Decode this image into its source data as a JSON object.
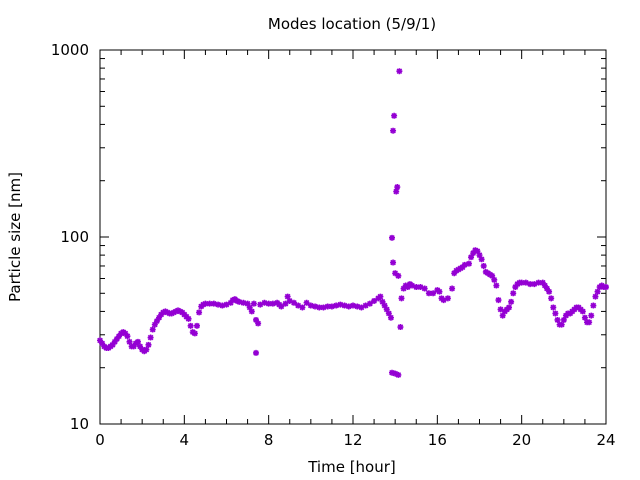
{
  "chart_data": {
    "type": "scatter",
    "title": "Modes location (5/9/1)",
    "xlabel": "Time [hour]",
    "ylabel": "Particle size [nm]",
    "xlim": [
      0,
      24
    ],
    "ylim": [
      10,
      1000
    ],
    "yscale": "log",
    "xticks": [
      0,
      4,
      8,
      12,
      16,
      20,
      24
    ],
    "xtick_labels": [
      "0",
      "4",
      "8",
      "12",
      "16",
      "20",
      "24"
    ],
    "yticks": [
      10,
      100,
      1000
    ],
    "ytick_labels": [
      "10",
      "100",
      "1000"
    ],
    "grid": false,
    "legend": "none",
    "marker_color": "#9400D3",
    "series": [
      {
        "points": [
          [
            0.0,
            28
          ],
          [
            0.1,
            27
          ],
          [
            0.2,
            26
          ],
          [
            0.3,
            25.5
          ],
          [
            0.4,
            25.5
          ],
          [
            0.5,
            26
          ],
          [
            0.6,
            26.5
          ],
          [
            0.7,
            27.5
          ],
          [
            0.8,
            28.5
          ],
          [
            0.9,
            29.5
          ],
          [
            1.0,
            30.5
          ],
          [
            1.1,
            31
          ],
          [
            1.2,
            30.5
          ],
          [
            1.3,
            29.5
          ],
          [
            1.4,
            27.5
          ],
          [
            1.5,
            26
          ],
          [
            1.6,
            26
          ],
          [
            1.7,
            27
          ],
          [
            1.8,
            27.5
          ],
          [
            1.9,
            26
          ],
          [
            2.0,
            25
          ],
          [
            2.1,
            24.5
          ],
          [
            2.2,
            25
          ],
          [
            2.3,
            26.5
          ],
          [
            2.4,
            29
          ],
          [
            2.5,
            32
          ],
          [
            2.6,
            34
          ],
          [
            2.7,
            35.5
          ],
          [
            2.8,
            37
          ],
          [
            2.9,
            38.5
          ],
          [
            3.0,
            39.5
          ],
          [
            3.1,
            40
          ],
          [
            3.2,
            39.5
          ],
          [
            3.3,
            39
          ],
          [
            3.4,
            39
          ],
          [
            3.5,
            39.5
          ],
          [
            3.6,
            40
          ],
          [
            3.7,
            40.5
          ],
          [
            3.8,
            40
          ],
          [
            3.9,
            39.5
          ],
          [
            4.0,
            38.5
          ],
          [
            4.1,
            37.5
          ],
          [
            4.2,
            36.5
          ],
          [
            4.3,
            33.5
          ],
          [
            4.4,
            31
          ],
          [
            4.5,
            30.5
          ],
          [
            4.6,
            33.5
          ],
          [
            4.7,
            39.5
          ],
          [
            4.8,
            42.5
          ],
          [
            4.9,
            43.5
          ],
          [
            5.0,
            44
          ],
          [
            5.2,
            44
          ],
          [
            5.4,
            44
          ],
          [
            5.6,
            43.5
          ],
          [
            5.8,
            43
          ],
          [
            6.0,
            43.5
          ],
          [
            6.2,
            44.5
          ],
          [
            6.3,
            46
          ],
          [
            6.4,
            46.5
          ],
          [
            6.5,
            45.5
          ],
          [
            6.6,
            45
          ],
          [
            6.8,
            44.5
          ],
          [
            7.0,
            44
          ],
          [
            7.1,
            42
          ],
          [
            7.2,
            40
          ],
          [
            7.3,
            44
          ],
          [
            7.4,
            36
          ],
          [
            7.5,
            34.5
          ],
          [
            7.4,
            24
          ],
          [
            7.6,
            43.5
          ],
          [
            7.8,
            44.5
          ],
          [
            8.0,
            44
          ],
          [
            8.2,
            44
          ],
          [
            8.4,
            44.5
          ],
          [
            8.5,
            43.5
          ],
          [
            8.6,
            42.5
          ],
          [
            8.8,
            44
          ],
          [
            8.9,
            48
          ],
          [
            9.0,
            45.5
          ],
          [
            9.2,
            44.5
          ],
          [
            9.4,
            43
          ],
          [
            9.6,
            42
          ],
          [
            9.8,
            44.5
          ],
          [
            10.0,
            43
          ],
          [
            10.2,
            42.5
          ],
          [
            10.4,
            42
          ],
          [
            10.6,
            42
          ],
          [
            10.8,
            42.5
          ],
          [
            11.0,
            42.5
          ],
          [
            11.2,
            43
          ],
          [
            11.4,
            43.5
          ],
          [
            11.6,
            43
          ],
          [
            11.8,
            42.5
          ],
          [
            12.0,
            43
          ],
          [
            12.2,
            42.5
          ],
          [
            12.4,
            42
          ],
          [
            12.6,
            43
          ],
          [
            12.8,
            44
          ],
          [
            13.0,
            45.5
          ],
          [
            13.2,
            47
          ],
          [
            13.3,
            48
          ],
          [
            13.4,
            45
          ],
          [
            13.5,
            43
          ],
          [
            13.6,
            41
          ],
          [
            13.7,
            39
          ],
          [
            13.8,
            37
          ],
          [
            13.85,
            99
          ],
          [
            13.9,
            73
          ],
          [
            13.9,
            370
          ],
          [
            13.95,
            445
          ],
          [
            14.0,
            64
          ],
          [
            14.05,
            175
          ],
          [
            14.1,
            185
          ],
          [
            14.15,
            62
          ],
          [
            14.2,
            770
          ],
          [
            14.25,
            33
          ],
          [
            14.3,
            47
          ],
          [
            13.85,
            18.8
          ],
          [
            14.0,
            18.6
          ],
          [
            14.15,
            18.3
          ],
          [
            14.4,
            53
          ],
          [
            14.5,
            55
          ],
          [
            14.6,
            54
          ],
          [
            14.7,
            56
          ],
          [
            14.8,
            55
          ],
          [
            15.0,
            54
          ],
          [
            15.2,
            54
          ],
          [
            15.4,
            53
          ],
          [
            15.6,
            50
          ],
          [
            15.8,
            50
          ],
          [
            16.0,
            52
          ],
          [
            16.1,
            51
          ],
          [
            16.2,
            47
          ],
          [
            16.3,
            46
          ],
          [
            16.5,
            47
          ],
          [
            16.7,
            53
          ],
          [
            16.8,
            64
          ],
          [
            16.9,
            66
          ],
          [
            17.0,
            67
          ],
          [
            17.1,
            68
          ],
          [
            17.2,
            69
          ],
          [
            17.3,
            71
          ],
          [
            17.5,
            72
          ],
          [
            17.6,
            78
          ],
          [
            17.7,
            82
          ],
          [
            17.8,
            85
          ],
          [
            17.9,
            84
          ],
          [
            18.0,
            80
          ],
          [
            18.1,
            76
          ],
          [
            18.2,
            70
          ],
          [
            18.3,
            65
          ],
          [
            18.4,
            64
          ],
          [
            18.5,
            63
          ],
          [
            18.6,
            62
          ],
          [
            18.7,
            59
          ],
          [
            18.8,
            55
          ],
          [
            18.9,
            46
          ],
          [
            19.0,
            41
          ],
          [
            19.1,
            38
          ],
          [
            19.2,
            40
          ],
          [
            19.3,
            41
          ],
          [
            19.4,
            42
          ],
          [
            19.5,
            45
          ],
          [
            19.6,
            50
          ],
          [
            19.7,
            54
          ],
          [
            19.8,
            56
          ],
          [
            19.9,
            57
          ],
          [
            20.0,
            57
          ],
          [
            20.2,
            57
          ],
          [
            20.4,
            56
          ],
          [
            20.6,
            56
          ],
          [
            20.8,
            57
          ],
          [
            21.0,
            57
          ],
          [
            21.1,
            55
          ],
          [
            21.2,
            53
          ],
          [
            21.3,
            51
          ],
          [
            21.4,
            47
          ],
          [
            21.5,
            42
          ],
          [
            21.6,
            39
          ],
          [
            21.7,
            36
          ],
          [
            21.8,
            34
          ],
          [
            21.9,
            34
          ],
          [
            22.0,
            36
          ],
          [
            22.1,
            38
          ],
          [
            22.2,
            39
          ],
          [
            22.3,
            39
          ],
          [
            22.4,
            40
          ],
          [
            22.5,
            41
          ],
          [
            22.6,
            42
          ],
          [
            22.7,
            42
          ],
          [
            22.8,
            41
          ],
          [
            22.9,
            40
          ],
          [
            23.0,
            37
          ],
          [
            23.1,
            35
          ],
          [
            23.2,
            35
          ],
          [
            23.3,
            38
          ],
          [
            23.4,
            43
          ],
          [
            23.5,
            48
          ],
          [
            23.6,
            51
          ],
          [
            23.7,
            54
          ],
          [
            23.8,
            55
          ],
          [
            23.9,
            54
          ],
          [
            24.0,
            54
          ]
        ]
      }
    ]
  }
}
